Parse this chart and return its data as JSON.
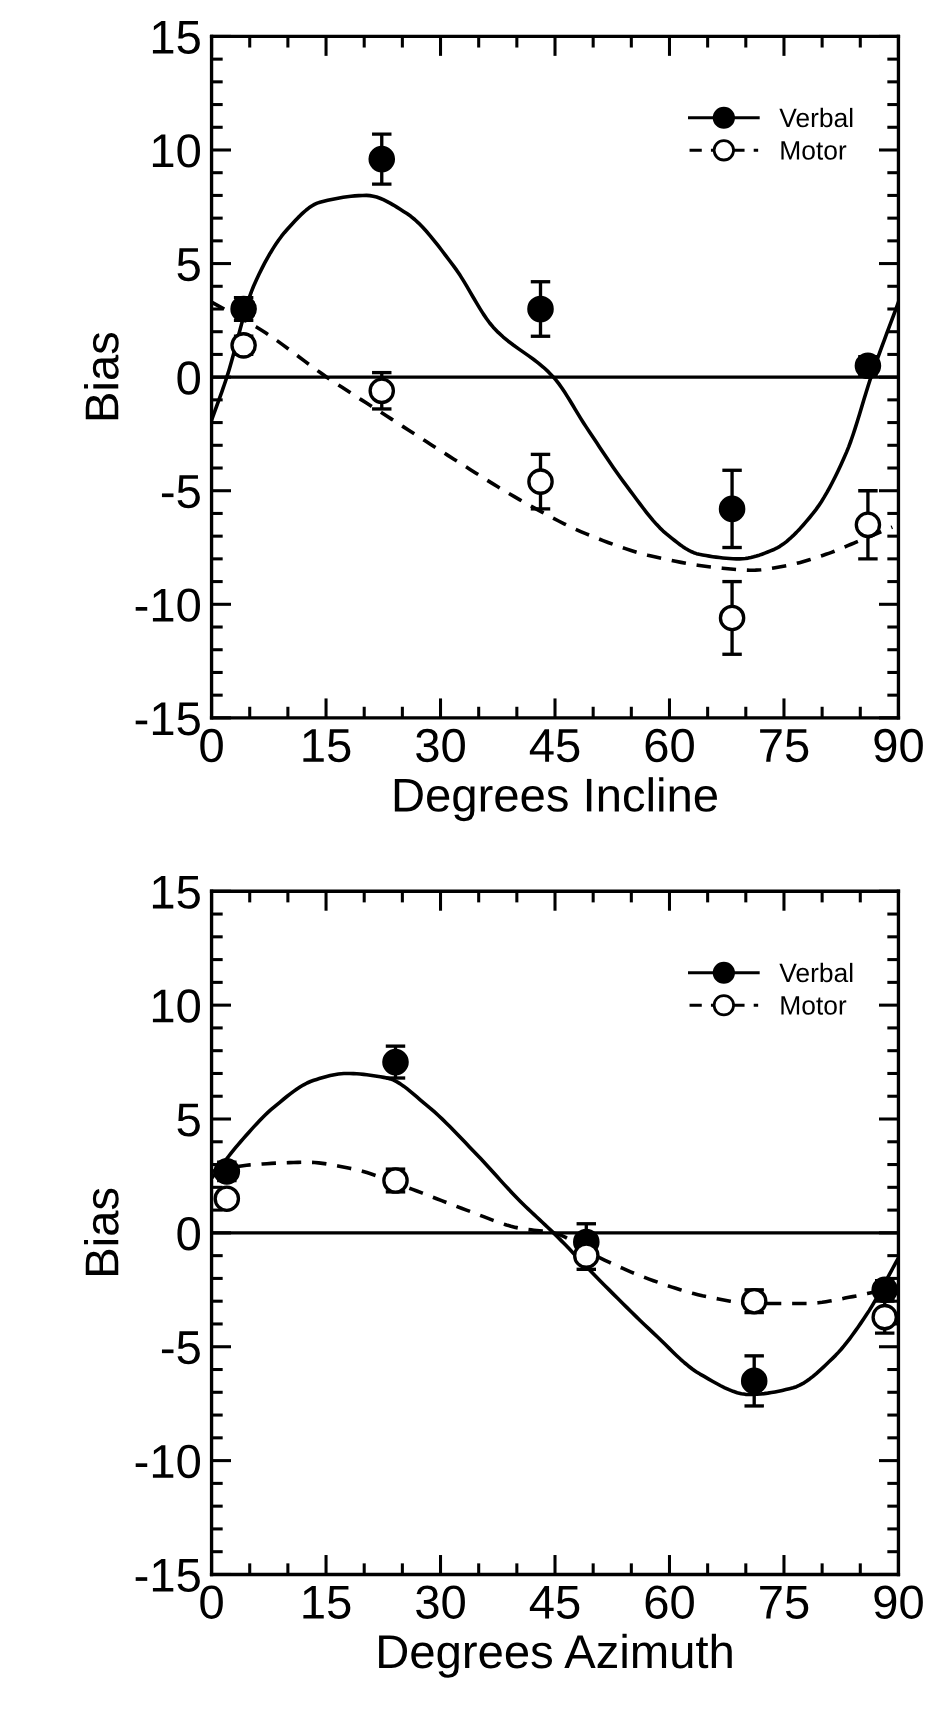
{
  "chart_data": [
    {
      "type": "scatter",
      "xlabel": "Degrees Incline",
      "ylabel": "Bias",
      "xlim": [
        0,
        90
      ],
      "ylim": [
        -15,
        15
      ],
      "xticks": [
        0,
        15,
        30,
        45,
        60,
        75,
        90
      ],
      "yticks": [
        -15,
        -10,
        -5,
        0,
        5,
        10,
        15
      ],
      "grid": false,
      "legend": "top right",
      "ref_lines": [
        {
          "axis": "y",
          "value": 0,
          "color": "#000000"
        }
      ],
      "series": [
        {
          "name": "Verbal",
          "marker": "circle",
          "color": "#000000",
          "x": [
            4.2,
            22.3,
            43.1,
            68.2,
            86
          ],
          "values": [
            3.0,
            9.6,
            3.0,
            -5.8,
            0.5
          ],
          "errors": [
            0.5,
            1.1,
            1.2,
            1.7,
            0.4
          ]
        },
        {
          "name": "Motor",
          "marker": "circle",
          "color": "#ffffff",
          "x": [
            4.2,
            22.3,
            43.1,
            68.2,
            86
          ],
          "values": [
            1.4,
            -0.6,
            -4.6,
            -10.6,
            -6.5
          ],
          "errors": [
            0.4,
            0.8,
            1.2,
            1.6,
            1.5
          ]
        },
        {
          "type": "line",
          "line_style": "solid",
          "marker": "none",
          "color": "#000000",
          "x": [
            0,
            2,
            5.5,
            9.9,
            14.2,
            20.3,
            25.6,
            31.7,
            36.9,
            44.8,
            49.1,
            54.4,
            59.6,
            63.9,
            69.2,
            73.6,
            78.8,
            83.2,
            86.6,
            90
          ],
          "values": [
            -1.9,
            0,
            4,
            6.5,
            7.7,
            8.0,
            7.2,
            4.9,
            2.2,
            0,
            -2.2,
            -4.8,
            -6.9,
            -7.8,
            -8.0,
            -7.6,
            -6.0,
            -3.3,
            0.2,
            3.3
          ]
        },
        {
          "type": "line",
          "line_style": "dashed",
          "marker": "none",
          "color": "#000000",
          "x": [
            0,
            6.4,
            15.1,
            22.9,
            31.7,
            40.4,
            49.1,
            57.9,
            66.6,
            70.9,
            75.3,
            80.5,
            84.9,
            89.2
          ],
          "values": [
            3.3,
            2.1,
            0,
            -1.7,
            -3.6,
            -5.4,
            -6.9,
            -7.9,
            -8.4,
            -8.5,
            -8.3,
            -7.8,
            -7.2,
            -6.6
          ]
        }
      ]
    },
    {
      "type": "scatter",
      "xlabel": "Degrees Azimuth",
      "ylabel": "Bias",
      "xlim": [
        0,
        90
      ],
      "ylim": [
        -15,
        15
      ],
      "xticks": [
        0,
        15,
        30,
        45,
        60,
        75,
        90
      ],
      "yticks": [
        -15,
        -10,
        -5,
        0,
        5,
        10,
        15
      ],
      "grid": false,
      "legend": "top right",
      "ref_lines": [
        {
          "axis": "y",
          "value": 0,
          "color": "#000000"
        }
      ],
      "series": [
        {
          "name": "Verbal",
          "marker": "circle",
          "color": "#000000",
          "x": [
            2.0,
            24.1,
            49.1,
            71.1,
            88.2
          ],
          "values": [
            2.7,
            7.5,
            -0.4,
            -6.5,
            -2.5
          ],
          "errors": [
            0.4,
            0.7,
            0.8,
            1.1,
            0.4
          ]
        },
        {
          "name": "Motor",
          "marker": "circle",
          "color": "#ffffff",
          "x": [
            2.0,
            24.1,
            49.1,
            71.1,
            88.2
          ],
          "values": [
            1.5,
            2.3,
            -1.0,
            -3.0,
            -3.7
          ],
          "errors": [
            0.3,
            0.5,
            0.6,
            0.5,
            0.7
          ]
        },
        {
          "type": "line",
          "line_style": "solid",
          "marker": "none",
          "color": "#000000",
          "x": [
            0,
            3.8,
            8.1,
            13.4,
            17.7,
            23,
            28.2,
            34.3,
            40.4,
            44.8,
            50.9,
            57.9,
            64,
            70.5,
            76.2,
            81.4,
            85.8,
            90
          ],
          "values": [
            2.4,
            4.0,
            5.5,
            6.7,
            7.0,
            6.8,
            5.6,
            3.6,
            1.4,
            0,
            -2.1,
            -4.4,
            -6.2,
            -7.1,
            -6.8,
            -5.5,
            -3.6,
            -1.1
          ]
        },
        {
          "type": "line",
          "line_style": "dashed",
          "marker": "none",
          "color": "#000000",
          "x": [
            0,
            5.5,
            12.5,
            18.6,
            25.6,
            33.4,
            40.4,
            44.8,
            50.9,
            57.9,
            64.9,
            71,
            78,
            84,
            89.3
          ],
          "values": [
            2.7,
            3.0,
            3.1,
            2.8,
            2.0,
            1.0,
            0.2,
            0,
            -1.1,
            -2.1,
            -2.8,
            -3.1,
            -3.1,
            -2.8,
            -2.4
          ]
        }
      ]
    }
  ]
}
